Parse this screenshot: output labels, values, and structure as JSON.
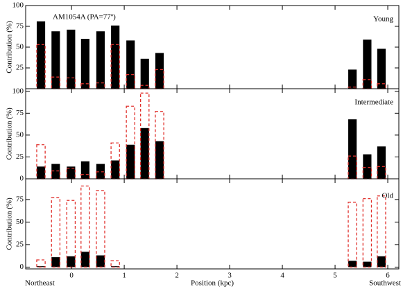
{
  "chart_data": [
    {
      "type": "bar",
      "title": "AM1054A (PA=77º)",
      "label": "Young",
      "ylabel": "Contribution (%)",
      "x": [
        -0.58,
        -0.3,
        -0.01,
        0.26,
        0.55,
        0.83,
        1.12,
        1.39,
        1.67,
        5.33,
        5.61,
        5.88
      ],
      "xlim": [
        -0.87,
        6.21
      ],
      "ylim": [
        0,
        100
      ],
      "yticks": [
        25,
        50,
        75,
        100
      ],
      "bar_width": 0.16,
      "series": [
        {
          "color": "#000000",
          "style": "solid",
          "values": [
            81,
            69,
            71,
            60,
            69,
            76,
            58,
            36,
            43,
            23,
            59,
            48
          ]
        },
        {
          "color": "#e0302c",
          "style": "dashed",
          "values": [
            53,
            14,
            13,
            6,
            7,
            53,
            17,
            4,
            23,
            2,
            11,
            6
          ]
        }
      ]
    },
    {
      "type": "bar",
      "label": "Intermediate",
      "ylabel": "Contribution (%)",
      "x": [
        -0.58,
        -0.3,
        -0.01,
        0.26,
        0.55,
        0.83,
        1.12,
        1.39,
        1.67,
        5.33,
        5.61,
        5.88
      ],
      "xlim": [
        -0.87,
        6.21
      ],
      "ylim": [
        0,
        103
      ],
      "yticks": [
        0,
        25,
        50,
        75,
        100
      ],
      "bar_width": 0.16,
      "series": [
        {
          "color": "#000000",
          "style": "solid",
          "values": [
            14,
            17,
            14,
            20,
            17,
            21,
            39,
            58,
            43,
            68,
            28,
            37
          ]
        },
        {
          "color": "#e0302c",
          "style": "dashed",
          "values": [
            39,
            9,
            12,
            5,
            8,
            41,
            83,
            98,
            77,
            26,
            13,
            14
          ]
        }
      ]
    },
    {
      "type": "bar",
      "label": "Old",
      "ylabel": "Contribution (%)",
      "xlabel": "Position (kpc)",
      "annotations": [
        "Northeast",
        "Southwest"
      ],
      "x": [
        -0.58,
        -0.3,
        -0.01,
        0.26,
        0.55,
        0.83,
        1.12,
        1.39,
        1.67,
        5.33,
        5.61,
        5.88
      ],
      "xlim": [
        -0.87,
        6.21
      ],
      "ylim": [
        -2,
        98
      ],
      "yticks": [
        0,
        25,
        50,
        75
      ],
      "xticks": [
        0,
        1,
        2,
        3,
        4,
        5,
        6
      ],
      "bar_width": 0.16,
      "series": [
        {
          "color": "#000000",
          "style": "solid",
          "values": [
            1,
            11,
            12,
            17,
            13,
            1,
            0,
            0,
            0,
            7,
            6,
            12
          ]
        },
        {
          "color": "#e0302c",
          "style": "dashed",
          "values": [
            8,
            77,
            74,
            90,
            85,
            7,
            0,
            0,
            0,
            72,
            76,
            79
          ]
        }
      ]
    }
  ]
}
